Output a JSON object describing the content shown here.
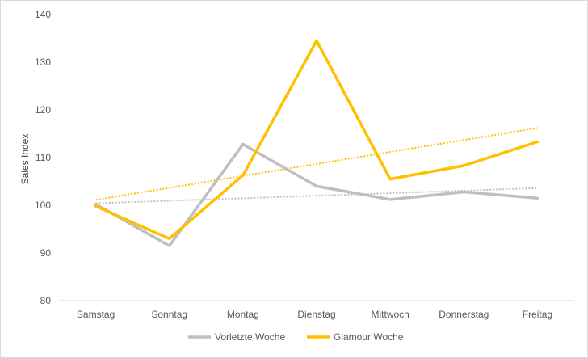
{
  "chart_data": {
    "type": "line",
    "title": "",
    "xlabel": "",
    "ylabel": "Sales Index",
    "ylim": [
      80,
      140
    ],
    "yticks": [
      80,
      90,
      100,
      110,
      120,
      130,
      140
    ],
    "grid": false,
    "legend_position": "bottom",
    "categories": [
      "Samstag",
      "Sonntag",
      "Montag",
      "Dienstag",
      "Mittwoch",
      "Donnerstag",
      "Freitag"
    ],
    "series": [
      {
        "name": "Vorletzte Woche",
        "color": "#bfbfbf",
        "values": [
          100.2,
          91.5,
          112.8,
          104.0,
          101.2,
          102.8,
          101.5
        ],
        "trendline": "linear"
      },
      {
        "name": "Glamour Woche",
        "color": "#ffc000",
        "values": [
          99.8,
          93.0,
          106.3,
          134.5,
          105.5,
          108.3,
          113.3
        ],
        "trendline": "linear"
      }
    ]
  }
}
